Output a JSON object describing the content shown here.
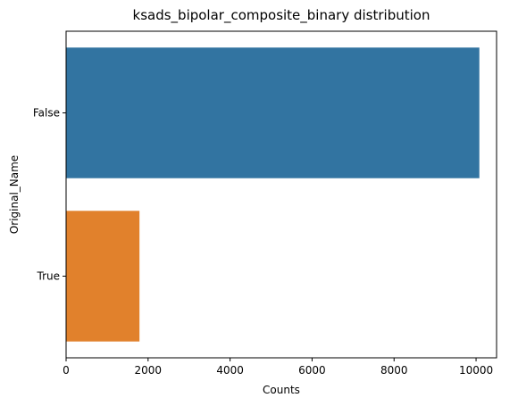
{
  "chart_data": {
    "type": "bar",
    "orientation": "horizontal",
    "title": "ksads_bipolar_composite_binary distribution",
    "xlabel": "Counts",
    "ylabel": "Original_Name",
    "categories": [
      "False",
      "True"
    ],
    "values": [
      10080,
      1790
    ],
    "colors": [
      "#3274a1",
      "#e1812c"
    ],
    "xlim": [
      0,
      10500
    ],
    "xticks": [
      0,
      2000,
      4000,
      6000,
      8000,
      10000
    ],
    "grid": false,
    "legend": "none"
  }
}
